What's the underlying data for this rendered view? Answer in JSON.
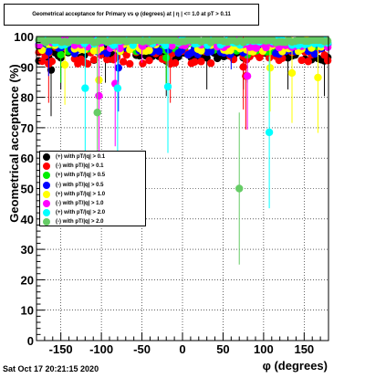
{
  "header": {
    "title": "Geometrical acceptance for Primary vs φ (degrees) at | η | <= 1.0 at pT > 0.11"
  },
  "footer": {
    "timestamp": "Sat Oct 17 20:21:15 2020"
  },
  "chart_data": {
    "type": "scatter",
    "title": "Geometrical acceptance for Primary vs φ (degrees) at | η | <= 1.0 at pT > 0.11",
    "xlabel": "φ (degrees)",
    "ylabel": "Geometrical acceptance (%)",
    "xlim": [
      -180,
      180
    ],
    "ylim": [
      0,
      100
    ],
    "xticks": [
      "-150",
      "-100",
      "-50",
      "0",
      "50",
      "100",
      "150"
    ],
    "yticks": [
      "0",
      "10",
      "20",
      "30",
      "40",
      "50",
      "60",
      "70",
      "80",
      "90",
      "100"
    ],
    "grid": true,
    "legend_position": "middle-left",
    "series": [
      {
        "name": "(+) with pT/|q| > 0.1",
        "color": "#000000",
        "band": [
          92,
          97
        ],
        "points": [
          [
            -162,
            89
          ],
          [
            -150,
            93
          ],
          [
            -95,
            94
          ],
          [
            -20,
            92
          ],
          [
            30,
            93
          ],
          [
            75,
            93
          ],
          [
            130,
            93
          ],
          [
            175,
            92
          ]
        ]
      },
      {
        "name": "(-) with pT/|q| > 0.1",
        "color": "#ff0000",
        "band": [
          91,
          97
        ],
        "points": [
          [
            -165,
            91
          ],
          [
            -15,
            91
          ],
          [
            75,
            90
          ],
          [
            78,
            87
          ]
        ]
      },
      {
        "name": "(+) with pT/|q| > 0.5",
        "color": "#00ee00",
        "band": [
          95,
          99
        ],
        "points": [
          [
            -150,
            94
          ],
          [
            -20,
            93
          ],
          [
            80,
            94
          ]
        ]
      },
      {
        "name": "(-) with pT/|q| > 0.5",
        "color": "#0000ff",
        "band": [
          94,
          99
        ],
        "points": [
          [
            -79,
            89.7
          ],
          [
            -165,
            95
          ],
          [
            60,
            96
          ]
        ]
      },
      {
        "name": "(+) with pT/|q| > 1.0",
        "color": "#ffff00",
        "band": [
          95,
          100
        ],
        "points": [
          [
            -145,
            90.7
          ],
          [
            -103,
            85.7
          ],
          [
            108,
            89.7
          ],
          [
            135,
            88
          ],
          [
            167,
            86.5
          ]
        ]
      },
      {
        "name": "(-) with pT/|q| > 1.0",
        "color": "#ff00ff",
        "band": [
          96,
          100
        ],
        "points": [
          [
            -103,
            80.5
          ],
          [
            -83,
            84.5
          ],
          [
            80,
            87
          ],
          [
            -50,
            97
          ]
        ]
      },
      {
        "name": "(+) with pT/|q| > 2.0",
        "color": "#00ffff",
        "band": [
          97,
          100
        ],
        "points": [
          [
            -120,
            83
          ],
          [
            -80,
            83
          ],
          [
            -18,
            83.5
          ],
          [
            107,
            68.5
          ]
        ]
      },
      {
        "name": "(-) with pT/|q| > 2.0",
        "color": "#66cc66",
        "band": [
          98,
          100
        ],
        "points": [
          [
            -105,
            75
          ],
          [
            70,
            50
          ]
        ]
      }
    ]
  }
}
